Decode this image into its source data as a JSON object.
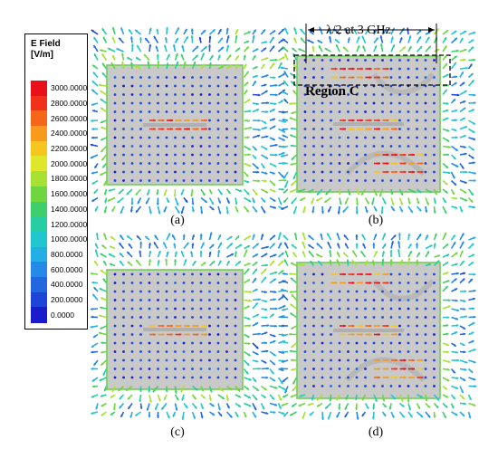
{
  "legend": {
    "title": "E Field\n[V/m]",
    "ticks": [
      "3000.0000",
      "2800.0000",
      "2600.0000",
      "2400.0000",
      "2200.0000",
      "2000.0000",
      "1800.0000",
      "1600.0000",
      "1400.0000",
      "1200.0000",
      "1000.0000",
      "800.0000",
      "600.0000",
      "400.0000",
      "200.0000",
      "0.0000"
    ],
    "colors": [
      "#e8101a",
      "#f0321a",
      "#f5651a",
      "#f89b1c",
      "#f7c51f",
      "#dfe72a",
      "#a8e034",
      "#6fd641",
      "#3fce6b",
      "#27cda3",
      "#22c6cf",
      "#23aee4",
      "#238ae8",
      "#2266e0",
      "#1e44d8",
      "#1a1ccc"
    ]
  },
  "panels": [
    {
      "id": "a",
      "label": "(a)"
    },
    {
      "id": "b",
      "label": "(b)"
    },
    {
      "id": "c",
      "label": "(c)"
    },
    {
      "id": "d",
      "label": "(d)"
    }
  ],
  "annotations": {
    "dimension": "λ/2 at 3 GHz",
    "region": "Region C"
  }
}
